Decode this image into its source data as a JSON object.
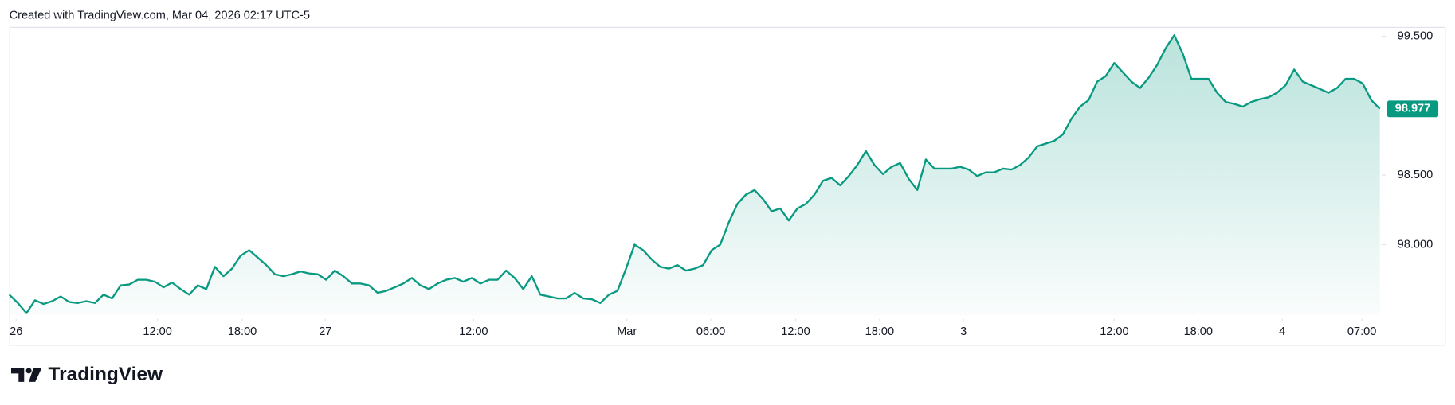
{
  "header": {
    "text": "Created with TradingView.com, Mar 04, 2026 02:17 UTC-5"
  },
  "chart_data": {
    "type": "area",
    "series": [
      {
        "name": "Price",
        "color": "#089981",
        "values": [
          97.64,
          97.58,
          97.507,
          97.6,
          97.573,
          97.593,
          97.627,
          97.587,
          97.58,
          97.593,
          97.58,
          97.64,
          97.613,
          97.707,
          97.713,
          97.747,
          97.747,
          97.733,
          97.693,
          97.727,
          97.68,
          97.64,
          97.707,
          97.68,
          97.84,
          97.773,
          97.827,
          97.92,
          97.96,
          97.907,
          97.853,
          97.787,
          97.773,
          97.787,
          97.807,
          97.793,
          97.787,
          97.747,
          97.813,
          97.773,
          97.72,
          97.72,
          97.707,
          97.653,
          97.667,
          97.693,
          97.72,
          97.76,
          97.707,
          97.68,
          97.72,
          97.747,
          97.76,
          97.733,
          97.76,
          97.72,
          97.747,
          97.747,
          97.813,
          97.76,
          97.68,
          97.773,
          97.64,
          97.627,
          97.613,
          97.613,
          97.653,
          97.613,
          97.607,
          97.58,
          97.64,
          97.667,
          97.827,
          98.0,
          97.96,
          97.893,
          97.84,
          97.827,
          97.853,
          97.813,
          97.827,
          97.853,
          97.96,
          98.0,
          98.16,
          98.293,
          98.36,
          98.393,
          98.327,
          98.24,
          98.26,
          98.173,
          98.26,
          98.293,
          98.36,
          98.46,
          98.48,
          98.427,
          98.493,
          98.573,
          98.673,
          98.573,
          98.507,
          98.56,
          98.587,
          98.473,
          98.393,
          98.613,
          98.547,
          98.547,
          98.547,
          98.56,
          98.54,
          98.493,
          98.52,
          98.52,
          98.547,
          98.54,
          98.573,
          98.627,
          98.707,
          98.727,
          98.747,
          98.793,
          98.907,
          98.993,
          99.04,
          99.173,
          99.213,
          99.307,
          99.24,
          99.173,
          99.127,
          99.2,
          99.293,
          99.413,
          99.507,
          99.373,
          99.193,
          99.193,
          99.193,
          99.093,
          99.027,
          99.013,
          98.993,
          99.027,
          99.047,
          99.06,
          99.093,
          99.147,
          99.26,
          99.173,
          99.147,
          99.12,
          99.093,
          99.127,
          99.193,
          99.193,
          99.16,
          99.04,
          98.977
        ]
      }
    ],
    "last_label": "98.977",
    "xlim": [
      0,
      160
    ],
    "xticks": [
      {
        "value": 0.8,
        "label": "26"
      },
      {
        "value": 17.3,
        "label": "12:00"
      },
      {
        "value": 27.2,
        "label": "18:00"
      },
      {
        "value": 36.9,
        "label": "27"
      },
      {
        "value": 54.2,
        "label": "12:00"
      },
      {
        "value": 72.1,
        "label": "Mar"
      },
      {
        "value": 81.9,
        "label": "06:00"
      },
      {
        "value": 91.8,
        "label": "12:00"
      },
      {
        "value": 101.6,
        "label": "18:00"
      },
      {
        "value": 111.4,
        "label": "3"
      },
      {
        "value": 129.0,
        "label": "12:00"
      },
      {
        "value": 138.8,
        "label": "18:00"
      },
      {
        "value": 148.6,
        "label": "4"
      },
      {
        "value": 157.9,
        "label": "07:00"
      }
    ],
    "ylim": [
      97.493,
      99.56
    ],
    "yticks": [
      {
        "value": 98,
        "label": "98.000"
      },
      {
        "value": 98.5,
        "label": "98.500"
      },
      {
        "value": 99.5,
        "label": "99.500"
      }
    ],
    "grid": false
  },
  "footer": {
    "brand": "TradingView"
  }
}
